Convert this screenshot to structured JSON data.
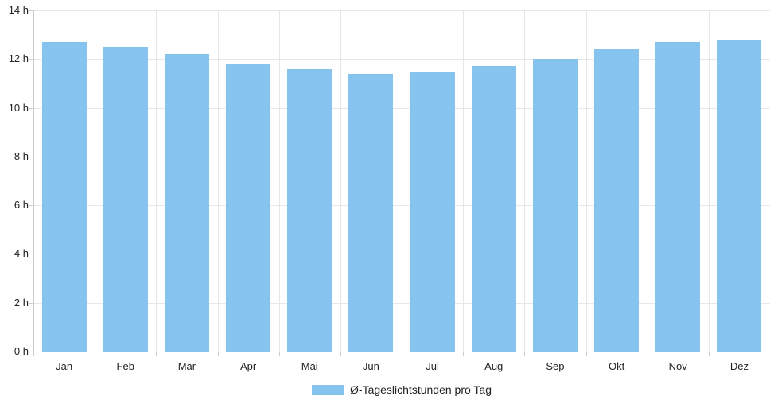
{
  "chart_data": {
    "type": "bar",
    "title": "",
    "categories": [
      "Jan",
      "Feb",
      "Mär",
      "Apr",
      "Mai",
      "Jun",
      "Jul",
      "Aug",
      "Sep",
      "Okt",
      "Nov",
      "Dez"
    ],
    "values": [
      12.7,
      12.5,
      12.2,
      11.8,
      11.6,
      11.4,
      11.5,
      11.7,
      12.0,
      12.4,
      12.7,
      12.8
    ],
    "series_name": "Ø-Tageslichtstunden pro Tag",
    "xlabel": "",
    "ylabel": "",
    "ylim": [
      0,
      14
    ],
    "ytick_step": 2,
    "ytick_labels": [
      "0 h",
      "2 h",
      "4 h",
      "6 h",
      "8 h",
      "10 h",
      "12 h",
      "14 h"
    ],
    "unit": "h",
    "grid": "on",
    "legend_position": "bottom-center"
  },
  "legend": {
    "label": "Ø-Tageslichtstunden pro Tag"
  },
  "colors": {
    "bar": "#86c3ee",
    "grid_h": "#e8e8e8",
    "grid_v": "#e6e6e6",
    "axis": "#cccccc",
    "text": "#222222",
    "background": "#ffffff"
  }
}
